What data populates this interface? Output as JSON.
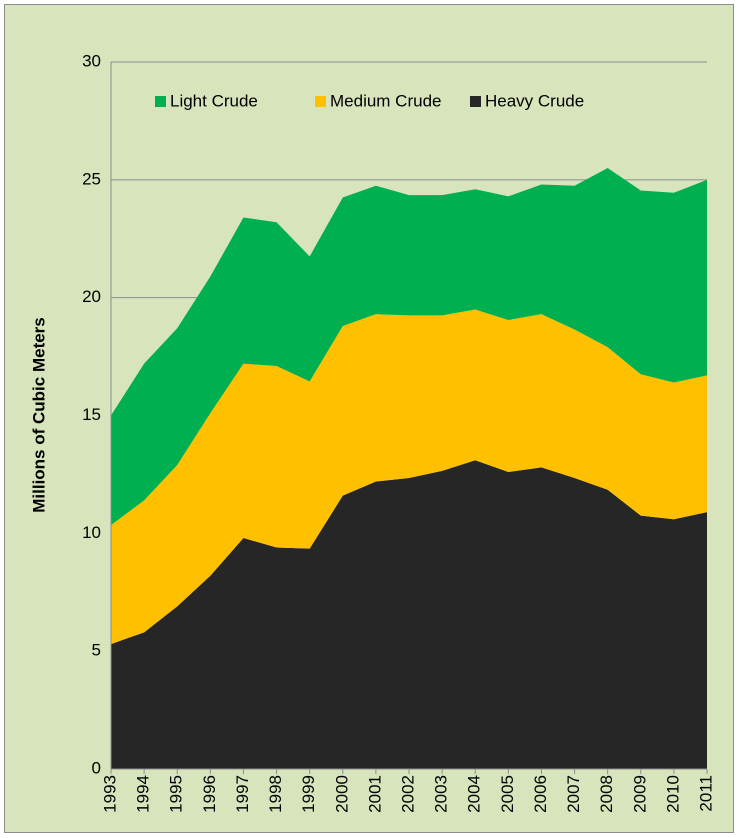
{
  "chart_data": {
    "type": "area",
    "stacked": true,
    "y_label": "Millions of Cubic Meters",
    "categories": [
      "1993",
      "1994",
      "1995",
      "1996",
      "1997",
      "1998",
      "1999",
      "2000",
      "2001",
      "2002",
      "2003",
      "2004",
      "2005",
      "2006",
      "2007",
      "2008",
      "2009",
      "2010",
      "2011"
    ],
    "series": [
      {
        "name": "Light Crude",
        "color": "#00b050",
        "values": [
          4.65,
          5.8,
          5.8,
          5.8,
          6.2,
          6.1,
          5.3,
          5.45,
          5.45,
          5.1,
          5.1,
          5.1,
          5.25,
          5.5,
          6.1,
          7.6,
          7.8,
          8.05,
          8.3
        ]
      },
      {
        "name": "Medium Crude",
        "color": "#ffc000",
        "values": [
          5.05,
          5.6,
          6.0,
          6.9,
          7.4,
          7.7,
          7.1,
          7.2,
          7.1,
          6.9,
          6.6,
          6.4,
          6.45,
          6.5,
          6.3,
          6.05,
          6.0,
          5.8,
          5.8
        ]
      },
      {
        "name": "Heavy Crude",
        "color": "#262626",
        "values": [
          5.3,
          5.8,
          6.9,
          8.2,
          9.8,
          9.4,
          9.35,
          11.6,
          12.2,
          12.35,
          12.65,
          13.1,
          12.6,
          12.8,
          12.35,
          11.85,
          10.75,
          10.6,
          10.9
        ]
      }
    ],
    "ylim": [
      0,
      30
    ],
    "yticks": [
      0,
      5,
      10,
      15,
      20,
      25,
      30
    ],
    "grid": true
  }
}
